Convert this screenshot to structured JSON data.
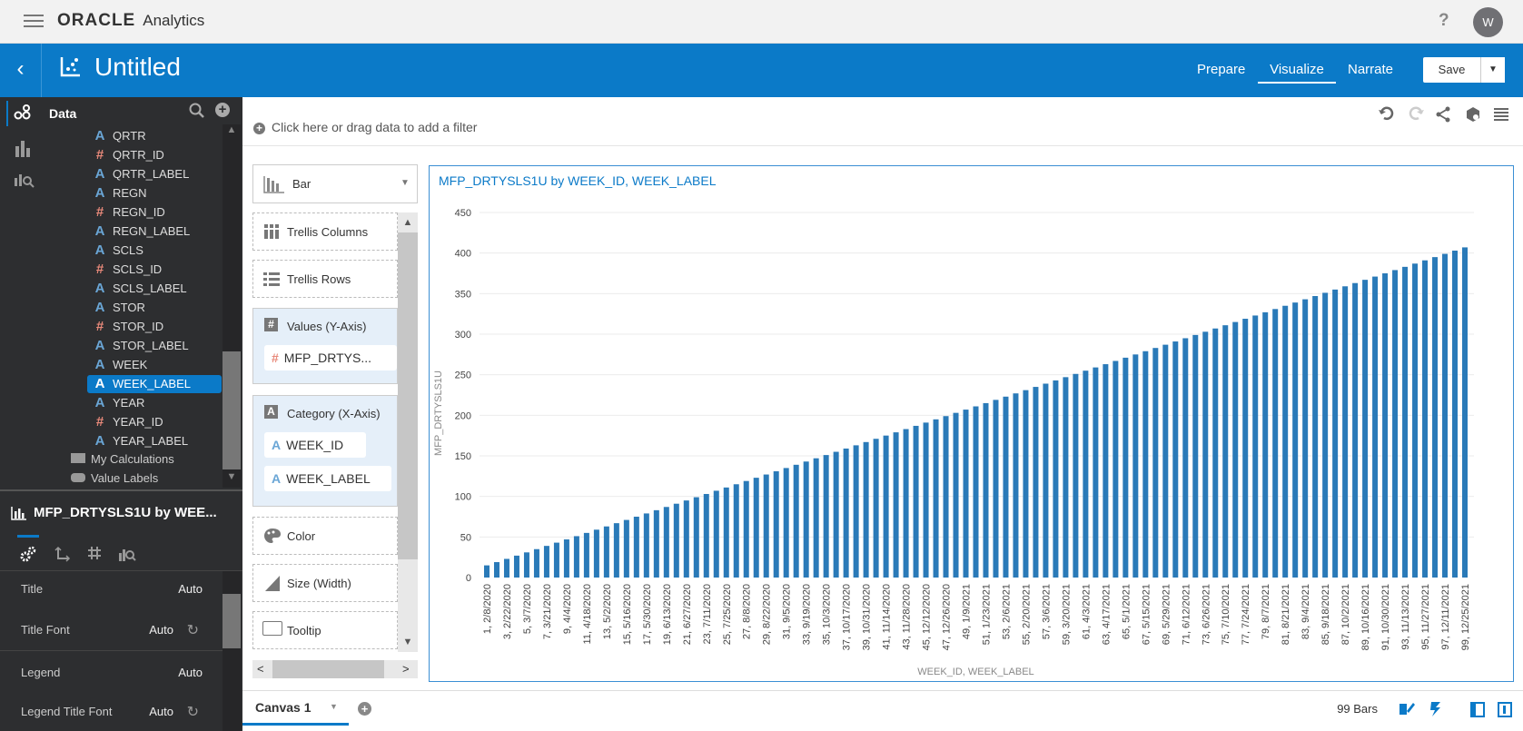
{
  "app": {
    "brand": "ORACLE",
    "product": "Analytics",
    "help": "?",
    "avatar": "W"
  },
  "header": {
    "title": "Untitled",
    "tabs": [
      {
        "label": "Prepare"
      },
      {
        "label": "Visualize",
        "active": true
      },
      {
        "label": "Narrate"
      }
    ],
    "save_label": "Save"
  },
  "sidebar": {
    "section": "Data",
    "fields": [
      {
        "name": "QRTR",
        "type": "A"
      },
      {
        "name": "QRTR_ID",
        "type": "#"
      },
      {
        "name": "QRTR_LABEL",
        "type": "A"
      },
      {
        "name": "REGN",
        "type": "A"
      },
      {
        "name": "REGN_ID",
        "type": "#"
      },
      {
        "name": "REGN_LABEL",
        "type": "A"
      },
      {
        "name": "SCLS",
        "type": "A"
      },
      {
        "name": "SCLS_ID",
        "type": "#"
      },
      {
        "name": "SCLS_LABEL",
        "type": "A"
      },
      {
        "name": "STOR",
        "type": "A"
      },
      {
        "name": "STOR_ID",
        "type": "#"
      },
      {
        "name": "STOR_LABEL",
        "type": "A"
      },
      {
        "name": "WEEK",
        "type": "A"
      },
      {
        "name": "WEEK_LABEL",
        "type": "A",
        "selected": true
      },
      {
        "name": "YEAR",
        "type": "A"
      },
      {
        "name": "YEAR_ID",
        "type": "#"
      },
      {
        "name": "YEAR_LABEL",
        "type": "A"
      }
    ],
    "folders": [
      "My Calculations",
      "Value Labels"
    ]
  },
  "properties": {
    "title": "MFP_DRTYSLS1U by WEE...",
    "rows": [
      {
        "label": "Title",
        "value": "Auto"
      },
      {
        "label": "Title Font",
        "value": "Auto"
      },
      {
        "label": "Legend",
        "value": "Auto"
      },
      {
        "label": "Legend Title Font",
        "value": "Auto"
      }
    ]
  },
  "filter": {
    "placeholder": "Click here or drag data to add a filter"
  },
  "grammar": {
    "chart_type": "Bar",
    "trellis_columns": "Trellis Columns",
    "trellis_rows": "Trellis Rows",
    "values_label": "Values (Y-Axis)",
    "values_item": "MFP_DRTYS...",
    "category_label": "Category (X-Axis)",
    "category_items": [
      "WEEK_ID",
      "WEEK_LABEL"
    ],
    "color": "Color",
    "size": "Size (Width)",
    "tooltip": "Tooltip"
  },
  "footer": {
    "canvas_tab": "Canvas 1",
    "status": "99 Bars"
  },
  "colors": {
    "accent": "#0b7ac8",
    "bar": "#2a7ab8",
    "number_icon": "#e8897a",
    "attr_icon": "#6aa6d6"
  },
  "chart_data": {
    "type": "bar",
    "title": "MFP_DRTYSLS1U by WEEK_ID, WEEK_LABEL",
    "xlabel": "WEEK_ID, WEEK_LABEL",
    "ylabel": "MFP_DRTYSLS1U",
    "ylim": [
      0,
      450
    ],
    "yticks": [
      0,
      50,
      100,
      150,
      200,
      250,
      300,
      350,
      400,
      450
    ],
    "grid": true,
    "x_tick_labels": [
      "1, 2/8/2020",
      "3, 2/22/2020",
      "5, 3/7/2020",
      "7, 3/21/2020",
      "9, 4/4/2020",
      "11, 4/18/2020",
      "13, 5/2/2020",
      "15, 5/16/2020",
      "17, 5/30/2020",
      "19, 6/13/2020",
      "21, 6/27/2020",
      "23, 7/11/2020",
      "25, 7/25/2020",
      "27, 8/8/2020",
      "29, 8/22/2020",
      "31, 9/5/2020",
      "33, 9/19/2020",
      "35, 10/3/2020",
      "37, 10/17/2020",
      "39, 10/31/2020",
      "41, 11/14/2020",
      "43, 11/28/2020",
      "45, 12/12/2020",
      "47, 12/26/2020",
      "49, 1/9/2021",
      "51, 1/23/2021",
      "53, 2/6/2021",
      "55, 2/20/2021",
      "57, 3/6/2021",
      "59, 3/20/2021",
      "61, 4/3/2021",
      "63, 4/17/2021",
      "65, 5/1/2021",
      "67, 5/15/2021",
      "69, 5/29/2021",
      "71, 6/12/2021",
      "73, 6/26/2021",
      "75, 7/10/2021",
      "77, 7/24/2021",
      "79, 8/7/2021",
      "81, 8/21/2021",
      "83, 9/4/2021",
      "85, 9/18/2021",
      "87, 10/2/2021",
      "89, 10/16/2021",
      "91, 10/30/2021",
      "93, 11/13/2021",
      "95, 11/27/2021",
      "97, 12/11/2021",
      "99, 12/25/2021"
    ],
    "values": [
      15,
      19,
      23,
      27,
      31,
      35,
      39,
      43,
      47,
      51,
      55,
      59,
      63,
      67,
      71,
      75,
      79,
      83,
      87,
      91,
      95,
      99,
      103,
      107,
      111,
      115,
      119,
      123,
      127,
      131,
      135,
      139,
      143,
      147,
      151,
      155,
      159,
      163,
      167,
      171,
      175,
      179,
      183,
      187,
      191,
      195,
      199,
      203,
      207,
      211,
      215,
      219,
      223,
      227,
      231,
      235,
      239,
      243,
      247,
      251,
      255,
      259,
      263,
      267,
      271,
      275,
      279,
      283,
      287,
      291,
      295,
      299,
      303,
      307,
      311,
      315,
      319,
      323,
      327,
      331,
      335,
      339,
      343,
      347,
      351,
      355,
      359,
      363,
      367,
      371,
      375,
      379,
      383,
      387,
      391,
      395,
      399,
      403,
      407
    ]
  }
}
